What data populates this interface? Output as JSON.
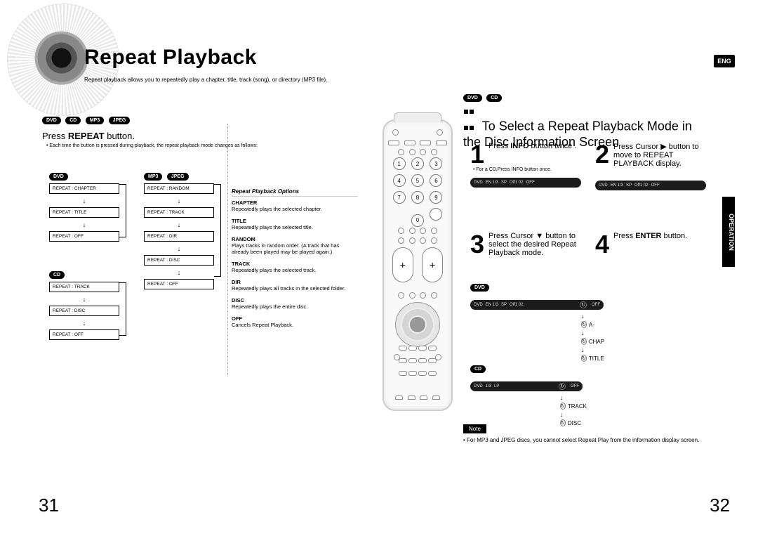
{
  "title": "Repeat Playback",
  "subtitle": "Repeat playback allows you to repeatedly play a chapter, title, track (song), or directory (MP3 file).",
  "eng": "ENG",
  "operation": "OPERATION",
  "pills": {
    "dvd": "DVD",
    "cd": "CD",
    "mp3": "MP3",
    "jpeg": "JPEG"
  },
  "press_repeat": {
    "pre": "Press  ",
    "bold": "REPEAT",
    "post": " button."
  },
  "press_repeat_note": "Each time the button is pressed during playback, the repeat playback mode changes as follows:",
  "flows": {
    "dvd": [
      "REPEAT : CHAPTER",
      "REPEAT : TITLE",
      "REPEAT : OFF"
    ],
    "cd": [
      "REPEAT : TRACK",
      "REPEAT : DISC",
      "REPEAT : OFF"
    ],
    "mp3jpeg": [
      "REPEAT : RANDOM",
      "REPEAT : TRACK",
      "REPEAT : DIR",
      "REPEAT : DISC",
      "REPEAT : OFF"
    ]
  },
  "options": {
    "header": "Repeat Playback Options",
    "items": [
      {
        "k": "CHAPTER",
        "v": "Repeatedly plays the selected chapter."
      },
      {
        "k": "TITLE",
        "v": "Repeatedly plays the selected title."
      },
      {
        "k": "RANDOM",
        "v": "Plays tracks in random order.\n(A track that has already been played may be played again.)"
      },
      {
        "k": "TRACK",
        "v": "Repeatedly plays the selected track."
      },
      {
        "k": "DIR",
        "v": "Repeatedly plays all tracks in the selected folder."
      },
      {
        "k": "DISC",
        "v": "Repeatedly plays the entire disc."
      },
      {
        "k": "OFF",
        "v": "Cancels Repeat Playback."
      }
    ]
  },
  "right_header": "To Select a Repeat Playback Mode in the Disc Information Screen",
  "steps": {
    "1": {
      "n": "1",
      "t_pre": "Press ",
      "t_b": "INFO",
      "t_post": " button twice .",
      "sub": "For a  CD,Press INFO button once."
    },
    "2": {
      "n": "2",
      "t": "Press Cursor  ▶ button to move to REPEAT PLAYBACK display."
    },
    "3": {
      "n": "3",
      "t": "Press Cursor  ▼ button to select the desired Repeat Playback mode."
    },
    "4": {
      "n": "4",
      "t_pre": "Press ",
      "t_b": "ENTER",
      "t_post": " button."
    }
  },
  "osd1_items": [
    "DVD",
    "EN 1/3",
    "SP",
    "Off1 02",
    "OFF"
  ],
  "osd2_items": [
    "DVD",
    "EN 1/3",
    "SP",
    "Off1 02",
    "OFF"
  ],
  "repeat_dvd": [
    "OFF",
    "A-",
    "CHAP",
    "TITLE"
  ],
  "repeat_cd_osd": [
    "DVD",
    "1/3",
    "LP",
    "OFF"
  ],
  "repeat_cd": [
    "OFF",
    "TRACK",
    "DISC"
  ],
  "note_label": "Note",
  "note_text": "For MP3 and JPEG discs, you cannot select Repeat Play from the information display screen.",
  "page_left": "31",
  "page_right": "32",
  "colors": {
    "black": "#000000",
    "grey_border": "#888888",
    "osd_bg": "#1c1c1c"
  }
}
